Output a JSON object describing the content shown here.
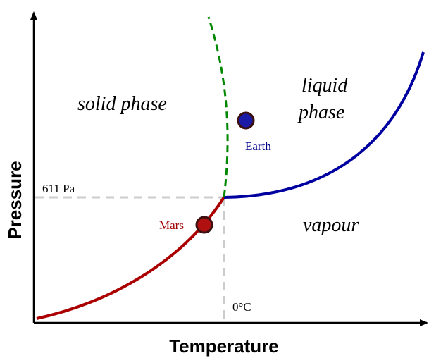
{
  "diagram": {
    "x_axis_label": "Temperature",
    "y_axis_label": "Pressure",
    "regions": {
      "solid": "solid phase",
      "liquid_line1": "liquid",
      "liquid_line2": "phase",
      "vapour": "vapour"
    },
    "triple_point": {
      "pressure_label": "611 Pa",
      "temperature_label": "0°C"
    },
    "points": {
      "earth": {
        "label": "Earth",
        "color": "#1a1aa6",
        "label_color": "#00008b"
      },
      "mars": {
        "label": "Mars",
        "color": "#b01010",
        "label_color": "#a00000"
      }
    },
    "colors": {
      "solid_vapour_curve": "#aa0000",
      "liquid_vapour_curve": "#0000a0",
      "solid_liquid_curve": "#008800",
      "guide_lines": "#cccccc"
    }
  }
}
